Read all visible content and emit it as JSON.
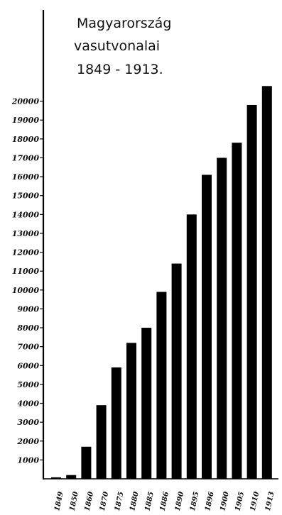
{
  "chart_data": {
    "type": "bar",
    "title_lines": [
      "Magyarország",
      "vasutvonalai",
      "1849 - 1913."
    ],
    "xlabel": "",
    "ylabel": "",
    "categories": [
      "1849",
      "1850",
      "1860",
      "1870",
      "1875",
      "1880",
      "1885",
      "1886",
      "1890",
      "1895",
      "1896",
      "1900",
      "1905",
      "1910",
      "1913"
    ],
    "values": [
      80,
      200,
      1700,
      3900,
      5900,
      7200,
      8000,
      9900,
      11400,
      14000,
      16100,
      17000,
      17800,
      19800,
      20800
    ],
    "ylim": [
      0,
      21000
    ],
    "yticks": [
      1000,
      2000,
      3000,
      4000,
      5000,
      6000,
      7000,
      8000,
      9000,
      10000,
      11000,
      12000,
      13000,
      14000,
      15000,
      16000,
      17000,
      18000,
      19000,
      20000
    ],
    "ytick_labels": [
      "1000",
      "2000",
      "3000",
      "4000",
      "5000",
      "6000",
      "7000",
      "8000",
      "9000",
      "10000",
      "11000",
      "12000",
      "13000",
      "14000",
      "15000",
      "16000",
      "17000",
      "18000",
      "19000",
      "20000"
    ],
    "grid": false,
    "legend": "none",
    "bar_color": "#000000"
  }
}
